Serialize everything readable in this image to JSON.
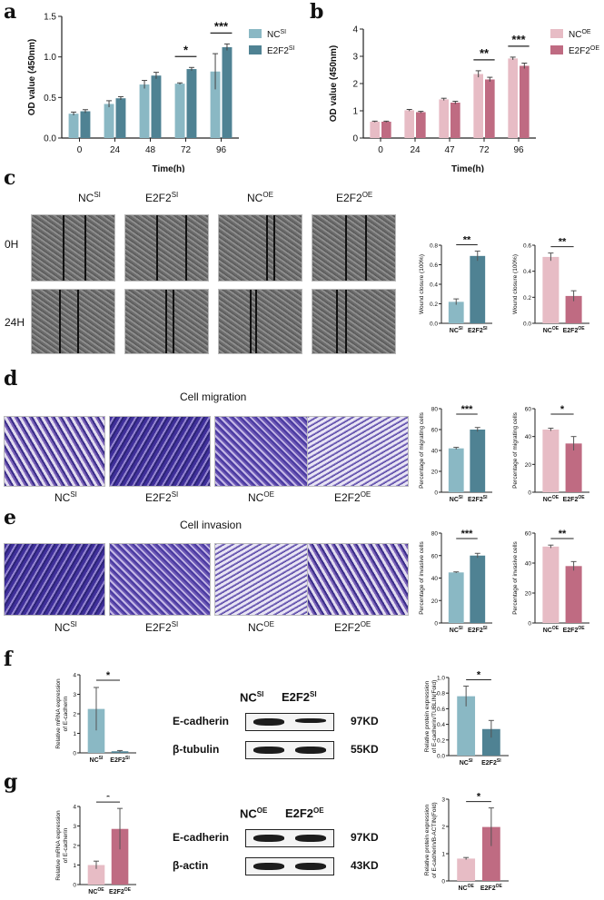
{
  "colors": {
    "ncsi": "#8ab8c4",
    "e2f2si": "#4f8293",
    "ncoe": "#e7bcc5",
    "e2f2oe": "#bf6b82"
  },
  "panels": {
    "a": "a",
    "b": "b",
    "c": "c",
    "d": "d",
    "e": "e",
    "f": "f",
    "g": "g"
  },
  "groups": {
    "ncsi": "NC",
    "e2f2si": "E2F2",
    "ncoe": "NC",
    "e2f2oe": "E2F2",
    "si": "SI",
    "oe": "OE"
  },
  "wound": {
    "row0": "0H",
    "row24": "24H"
  },
  "titles": {
    "migration": "Cell  migration",
    "invasion": "Cell  invasion"
  },
  "blots": {
    "f": {
      "header_nc": "NC",
      "header_e2f2": "E2F2",
      "sup": "SI",
      "rows": [
        {
          "protein": "E-cadherin",
          "kd": "97KD"
        },
        {
          "protein": "β-tubulin",
          "kd": "55KD"
        }
      ]
    },
    "g": {
      "header_nc": "NC",
      "header_e2f2": "E2F2",
      "sup": "OE",
      "rows": [
        {
          "protein": "E-cadherin",
          "kd": "97KD"
        },
        {
          "protein": "β-actin",
          "kd": "43KD"
        }
      ]
    }
  },
  "chart_data": [
    {
      "id": "a",
      "type": "bar",
      "categories": [
        "0",
        "24",
        "48",
        "72",
        "96"
      ],
      "series": [
        {
          "name": "NCSI",
          "values": [
            0.3,
            0.42,
            0.66,
            0.67,
            0.82
          ],
          "err": [
            0.02,
            0.04,
            0.05,
            0.01,
            0.22
          ]
        },
        {
          "name": "E2F2SI",
          "values": [
            0.33,
            0.49,
            0.77,
            0.85,
            1.12
          ],
          "err": [
            0.02,
            0.02,
            0.04,
            0.02,
            0.04
          ]
        }
      ],
      "ylabel": "OD value (450nm)",
      "xlabel": "Time(h)",
      "ylim": [
        0,
        1.5
      ],
      "yticks": [
        0,
        0.5,
        1.0,
        1.5
      ],
      "significance": [
        {
          "cat": 3,
          "text": "*"
        },
        {
          "cat": 4,
          "text": "***"
        }
      ],
      "legend": [
        "NC",
        "E2F2"
      ],
      "legend_sup": [
        "SI",
        "SI"
      ]
    },
    {
      "id": "b",
      "type": "bar",
      "categories": [
        "0",
        "24",
        "47",
        "72",
        "96"
      ],
      "series": [
        {
          "name": "NCOE",
          "values": [
            0.6,
            1.02,
            1.42,
            2.35,
            2.92
          ],
          "err": [
            0.02,
            0.03,
            0.04,
            0.12,
            0.05
          ]
        },
        {
          "name": "E2F2OE",
          "values": [
            0.6,
            0.95,
            1.3,
            2.15,
            2.65
          ],
          "err": [
            0.02,
            0.03,
            0.05,
            0.08,
            0.1
          ]
        }
      ],
      "ylabel": "OD value (450nm)",
      "xlabel": "Time(h)",
      "ylim": [
        0,
        4
      ],
      "yticks": [
        0,
        1,
        2,
        3,
        4
      ],
      "significance": [
        {
          "cat": 3,
          "text": "**"
        },
        {
          "cat": 4,
          "text": "***"
        }
      ],
      "legend": [
        "NC",
        "E2F2"
      ],
      "legend_sup": [
        "OE",
        "OE"
      ]
    },
    {
      "id": "c1",
      "type": "bar",
      "categories": [
        "NC",
        "E2F2"
      ],
      "sups": [
        "SI",
        "SI"
      ],
      "values": [
        0.22,
        0.69
      ],
      "err": [
        0.03,
        0.05
      ],
      "ylabel": "Wound closure (100%)",
      "ylim": [
        0,
        0.8
      ],
      "yticks": [
        0,
        0.2,
        0.4,
        0.6,
        0.8
      ],
      "sig": "**"
    },
    {
      "id": "c2",
      "type": "bar",
      "categories": [
        "NC",
        "E2F2"
      ],
      "sups": [
        "OE",
        "OE"
      ],
      "values": [
        0.51,
        0.21
      ],
      "err": [
        0.03,
        0.04
      ],
      "ylabel": "Wound closure (100%)",
      "ylim": [
        0,
        0.6
      ],
      "yticks": [
        0,
        0.2,
        0.4,
        0.6
      ],
      "sig": "**"
    },
    {
      "id": "d1",
      "type": "bar",
      "categories": [
        "NC",
        "E2F2"
      ],
      "sups": [
        "SI",
        "SI"
      ],
      "values": [
        42,
        60
      ],
      "err": [
        1,
        2
      ],
      "ylabel": "Percentage of migrating cells",
      "ylim": [
        0,
        80
      ],
      "yticks": [
        0,
        20,
        40,
        60,
        80
      ],
      "sig": "***"
    },
    {
      "id": "d2",
      "type": "bar",
      "categories": [
        "NC",
        "E2F2"
      ],
      "sups": [
        "OE",
        "OE"
      ],
      "values": [
        45,
        35
      ],
      "err": [
        1,
        5
      ],
      "ylabel": "Percentage of migrating cells",
      "ylim": [
        0,
        60
      ],
      "yticks": [
        0,
        20,
        40,
        60
      ],
      "sig": "*"
    },
    {
      "id": "e1",
      "type": "bar",
      "categories": [
        "NC",
        "E2F2"
      ],
      "sups": [
        "SI",
        "SI"
      ],
      "values": [
        45,
        60
      ],
      "err": [
        0.5,
        2
      ],
      "ylabel": "Percentage of invasive cells",
      "ylim": [
        0,
        80
      ],
      "yticks": [
        0,
        20,
        40,
        60,
        80
      ],
      "sig": "***"
    },
    {
      "id": "e2",
      "type": "bar",
      "categories": [
        "NC",
        "E2F2"
      ],
      "sups": [
        "OE",
        "OE"
      ],
      "values": [
        51,
        38
      ],
      "err": [
        1,
        3
      ],
      "ylabel": "Percentage of invasive cells",
      "ylim": [
        0,
        60
      ],
      "yticks": [
        0,
        20,
        40,
        60
      ],
      "sig": "**"
    },
    {
      "id": "f1",
      "type": "bar",
      "categories": [
        "NC",
        "E2F2"
      ],
      "sups": [
        "SI",
        "SI"
      ],
      "values": [
        2.25,
        0.08
      ],
      "err": [
        1.1,
        0.04
      ],
      "ylabel": "Relative mRNA expression of E-cadherin",
      "ylim": [
        0,
        4
      ],
      "yticks": [
        0,
        1,
        2,
        3,
        4
      ],
      "sig": "*"
    },
    {
      "id": "f2",
      "type": "bar",
      "categories": [
        "NC",
        "E2F2"
      ],
      "sups": [
        "SI",
        "SI"
      ],
      "values": [
        0.76,
        0.34
      ],
      "err": [
        0.13,
        0.11
      ],
      "ylabel": "Relative protein expression of E-cadherin/TUBLIN(Fold)",
      "ylim": [
        0,
        1.0
      ],
      "yticks": [
        0,
        0.2,
        0.4,
        0.6,
        0.8,
        1.0
      ],
      "sig": "*"
    },
    {
      "id": "g1",
      "type": "bar",
      "categories": [
        "NC",
        "E2F2"
      ],
      "sups": [
        "OE",
        "OE"
      ],
      "values": [
        1.0,
        2.85
      ],
      "err": [
        0.2,
        1.05
      ],
      "ylabel": "Relative mRNA expression of E-cadherin",
      "ylim": [
        0,
        4
      ],
      "yticks": [
        0,
        1,
        2,
        3,
        4
      ],
      "sig": "*"
    },
    {
      "id": "g2",
      "type": "bar",
      "categories": [
        "NC",
        "E2F2"
      ],
      "sups": [
        "OE",
        "OE"
      ],
      "values": [
        0.82,
        1.98
      ],
      "err": [
        0.04,
        0.7
      ],
      "ylabel": "Relative protein expression of E-cadherin/B-ACTIN(Fold)",
      "ylim": [
        0,
        3
      ],
      "yticks": [
        0,
        1,
        2,
        3
      ],
      "sig": "*"
    }
  ]
}
